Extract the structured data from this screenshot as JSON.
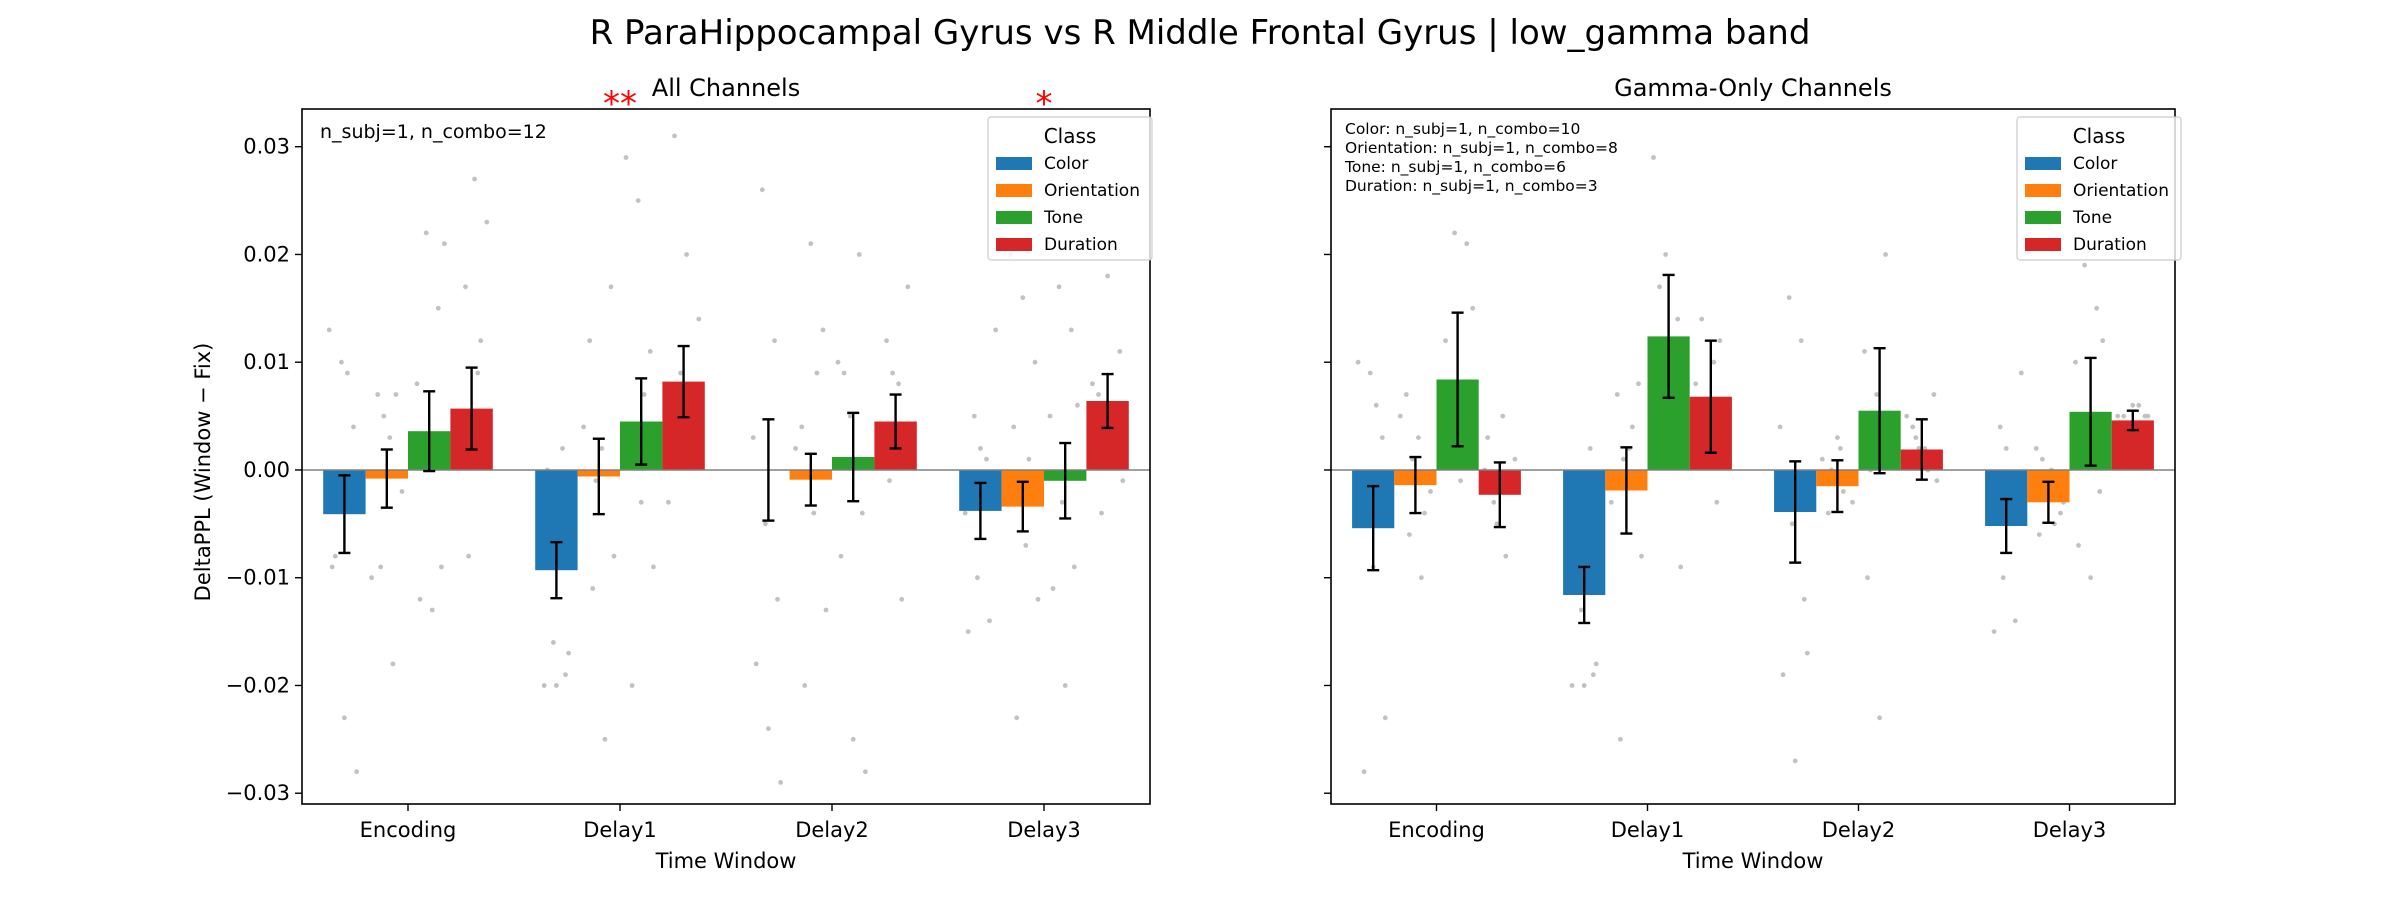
{
  "figure": {
    "suptitle": "R ParaHippocampal Gyrus vs R Middle Frontal Gyrus  |  low_gamma band"
  },
  "colors": {
    "Color": "#1f77b4",
    "Orientation": "#ff7f0e",
    "Tone": "#2ca02c",
    "Duration": "#d62728",
    "significance": "#ff0000",
    "scatter_points": "#bbbbbb"
  },
  "chart_data": [
    {
      "type": "bar",
      "title": "All Channels",
      "xlabel": "Time Window",
      "ylabel": "DeltaPPL (Window − Fix)",
      "ylim": [
        -0.031,
        0.0335
      ],
      "yticks": [
        -0.03,
        -0.02,
        -0.01,
        0.0,
        0.01,
        0.02,
        0.03
      ],
      "ytick_labels": [
        "−0.03",
        "−0.02",
        "−0.01",
        "0.00",
        "0.01",
        "0.02",
        "0.03"
      ],
      "categories": [
        "Encoding",
        "Delay1",
        "Delay2",
        "Delay3"
      ],
      "legend_title": "Class",
      "legend_location": "top-right",
      "annotation": "n_subj=1, n_combo=12",
      "significance": [
        "",
        "**",
        "",
        "*"
      ],
      "series": [
        {
          "name": "Color",
          "values": [
            -0.0041,
            -0.0093,
            0.0,
            -0.0038
          ],
          "err": [
            0.0036,
            0.0026,
            0.0047,
            0.0026
          ]
        },
        {
          "name": "Orientation",
          "values": [
            -0.0008,
            -0.0006,
            -0.0009,
            -0.0034
          ],
          "err": [
            0.0027,
            0.0035,
            0.0024,
            0.0023
          ]
        },
        {
          "name": "Tone",
          "values": [
            0.0036,
            0.0045,
            0.0012,
            -0.001
          ],
          "err": [
            0.0037,
            0.004,
            0.0041,
            0.0035
          ]
        },
        {
          "name": "Duration",
          "values": [
            0.0057,
            0.0082,
            0.0045,
            0.0064
          ],
          "err": [
            0.0038,
            0.0033,
            0.0025,
            0.0025
          ]
        }
      ],
      "points": [
        [
          [
            0.013,
            0.01,
            0.004,
            -0.009,
            -0.023,
            -0.028,
            -0.008,
            0.009
          ],
          [
            0.007,
            0.003,
            -0.002,
            -0.009,
            -0.018,
            -0.01,
            0.005,
            0.007
          ],
          [
            0.022,
            0.015,
            0.008,
            0.001,
            -0.009,
            -0.012,
            -0.013,
            0.021
          ],
          [
            0.027,
            0.023,
            0.017,
            0.009,
            0.004,
            -0.008,
            0.012,
            0.002
          ]
        ],
        [
          [
            0.002,
            -0.005,
            -0.016,
            -0.019,
            -0.02,
            -0.02,
            -0.017,
            0.0
          ],
          [
            0.017,
            0.012,
            0.002,
            -0.008,
            -0.011,
            -0.025,
            0.004,
            -0.001
          ],
          [
            0.029,
            0.025,
            0.011,
            0.004,
            -0.003,
            -0.009,
            -0.02,
            0.007
          ],
          [
            0.031,
            0.02,
            0.014,
            0.007,
            0.001,
            -0.003,
            0.009,
            0.003
          ]
        ],
        [
          [
            0.026,
            0.012,
            0.003,
            -0.005,
            -0.012,
            -0.018,
            -0.024,
            -0.029
          ],
          [
            0.021,
            0.013,
            0.004,
            -0.004,
            -0.013,
            -0.02,
            0.009,
            0.002
          ],
          [
            0.02,
            0.01,
            0.005,
            -0.004,
            -0.008,
            -0.025,
            -0.028,
            0.009
          ],
          [
            0.017,
            0.012,
            0.008,
            0.004,
            -0.001,
            -0.012,
            0.003,
            0.009
          ]
        ],
        [
          [
            0.013,
            0.005,
            0.001,
            -0.004,
            -0.01,
            -0.014,
            -0.015,
            0.002
          ],
          [
            0.02,
            0.016,
            0.01,
            0.004,
            -0.007,
            -0.012,
            -0.023,
            0.001
          ],
          [
            0.017,
            0.013,
            0.005,
            -0.003,
            -0.009,
            -0.011,
            -0.02,
            0.006
          ],
          [
            0.018,
            0.011,
            0.007,
            0.003,
            -0.001,
            -0.004,
            0.002,
            0.008
          ]
        ]
      ]
    },
    {
      "type": "bar",
      "title": "Gamma-Only Channels",
      "xlabel": "Time Window",
      "ylabel": "",
      "ylim": [
        -0.031,
        0.0335
      ],
      "yticks": [
        -0.03,
        -0.02,
        -0.01,
        0.0,
        0.01,
        0.02,
        0.03
      ],
      "categories": [
        "Encoding",
        "Delay1",
        "Delay2",
        "Delay3"
      ],
      "legend_title": "Class",
      "legend_location": "top-right",
      "annotation_lines": [
        "Color: n_subj=1, n_combo=10",
        "Orientation: n_subj=1, n_combo=8",
        "Tone: n_subj=1, n_combo=6",
        "Duration: n_subj=1, n_combo=3"
      ],
      "series": [
        {
          "name": "Color",
          "values": [
            -0.0054,
            -0.0116,
            -0.0039,
            -0.0052
          ],
          "err": [
            0.0039,
            0.0026,
            0.0047,
            0.0025
          ]
        },
        {
          "name": "Orientation",
          "values": [
            -0.0014,
            -0.0019,
            -0.0015,
            -0.003
          ],
          "err": [
            0.0026,
            0.004,
            0.0024,
            0.0019
          ]
        },
        {
          "name": "Tone",
          "values": [
            0.0084,
            0.0124,
            0.0055,
            0.0054
          ],
          "err": [
            0.0062,
            0.0057,
            0.0058,
            0.005
          ]
        },
        {
          "name": "Duration",
          "values": [
            -0.0023,
            0.0068,
            0.0019,
            0.0046
          ],
          "err": [
            0.003,
            0.0052,
            0.0028,
            0.0009
          ]
        }
      ],
      "points": [
        [
          [
            0.01,
            0.009,
            0.003,
            -0.004,
            -0.009,
            -0.023,
            -0.028,
            0.006
          ],
          [
            0.007,
            0.003,
            -0.002,
            -0.006,
            -0.01,
            0.005,
            0.001,
            -0.004
          ],
          [
            0.022,
            0.021,
            0.012,
            0.008,
            0.004,
            0.003,
            -0.001,
            0.015
          ],
          [
            0.005,
            0.001,
            -0.003,
            -0.008,
            0.0,
            -0.005,
            -0.002,
            0.003
          ]
        ],
        [
          [
            0.002,
            -0.005,
            -0.013,
            -0.019,
            -0.02,
            -0.02,
            -0.018,
            -0.001
          ],
          [
            0.008,
            0.007,
            0.002,
            -0.008,
            -0.025,
            0.004,
            -0.003,
            0.001
          ],
          [
            0.029,
            0.02,
            0.014,
            0.008,
            0.003,
            -0.009,
            0.017,
            0.011
          ],
          [
            0.014,
            0.01,
            0.006,
            0.002,
            -0.003,
            0.008,
            0.004,
            0.012
          ]
        ],
        [
          [
            0.016,
            0.012,
            0.004,
            -0.005,
            -0.012,
            -0.019,
            -0.027,
            -0.017
          ],
          [
            0.003,
            -0.001,
            -0.004,
            0.002,
            -0.003,
            0.0,
            -0.002,
            0.001
          ],
          [
            0.02,
            0.011,
            0.007,
            0.002,
            -0.01,
            -0.023,
            0.005,
            0.0
          ],
          [
            0.007,
            0.004,
            0.002,
            -0.001,
            0.003,
            0.0,
            0.005,
            0.002
          ]
        ],
        [
          [
            0.009,
            0.004,
            -0.001,
            -0.005,
            -0.01,
            -0.014,
            -0.015,
            0.002
          ],
          [
            0.002,
            -0.002,
            -0.004,
            -0.006,
            0.0,
            -0.003,
            0.001,
            -0.005
          ],
          [
            0.019,
            0.015,
            0.01,
            0.004,
            -0.002,
            -0.007,
            -0.01,
            0.012
          ],
          [
            0.006,
            0.005,
            0.005,
            0.004,
            0.005,
            0.004,
            0.006,
            0.005
          ]
        ]
      ]
    }
  ]
}
